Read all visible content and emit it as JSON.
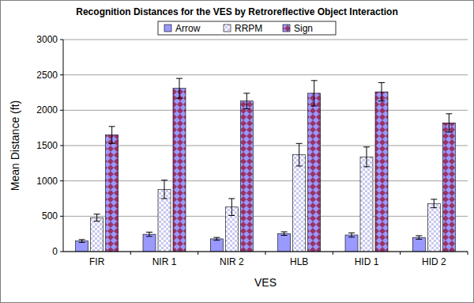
{
  "chart_data": {
    "type": "bar",
    "title": "Recognition Distances for the VES by Retroreflective Object Interaction",
    "x_label": "VES",
    "y_label": "Mean Distance (ft)",
    "categories": [
      "FIR",
      "NIR 1",
      "NIR 2",
      "HLB",
      "HID 1",
      "HID 2"
    ],
    "series": [
      {
        "name": "Arrow",
        "color": "#9999ff",
        "values": [
          150,
          245,
          180,
          255,
          235,
          200
        ],
        "errors": [
          20,
          30,
          20,
          25,
          30,
          25
        ]
      },
      {
        "name": "RRPM",
        "color": "#c8c8f0",
        "values": [
          480,
          880,
          630,
          1370,
          1340,
          680
        ],
        "errors": [
          50,
          130,
          120,
          160,
          140,
          60
        ]
      },
      {
        "name": "Sign",
        "color": "#993366",
        "values": [
          1650,
          2310,
          2130,
          2240,
          2260,
          1820
        ],
        "errors": [
          120,
          140,
          110,
          180,
          130,
          130
        ]
      }
    ],
    "ylim": [
      0,
      3000
    ],
    "yticks": [
      0,
      500,
      1000,
      1500,
      2000,
      2500,
      3000
    ],
    "grid": true,
    "legend": "top"
  }
}
